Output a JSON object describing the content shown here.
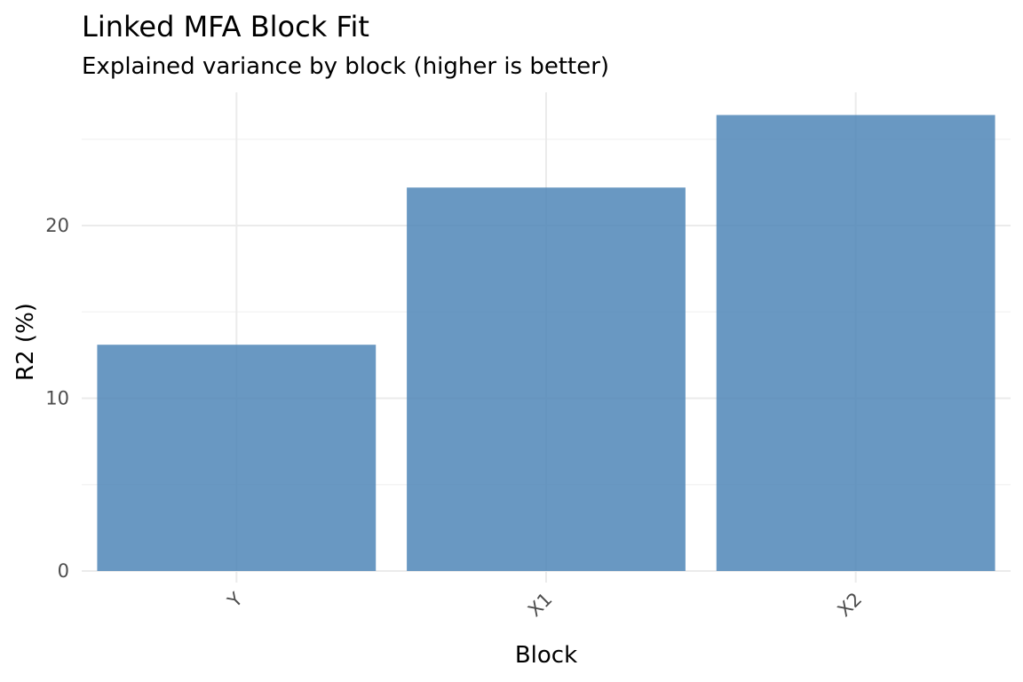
{
  "chart_data": {
    "type": "bar",
    "title": "Linked MFA Block Fit",
    "subtitle": "Explained variance by block (higher is better)",
    "xlabel": "Block",
    "ylabel": "R2 (%)",
    "categories": [
      "Y",
      "X1",
      "X2"
    ],
    "values": [
      13.1,
      22.2,
      26.4
    ],
    "ylim": [
      0,
      27.7
    ],
    "yticks": [
      0,
      10,
      20
    ],
    "bar_color": "#4f86b7",
    "grid": true,
    "legend": "none"
  }
}
